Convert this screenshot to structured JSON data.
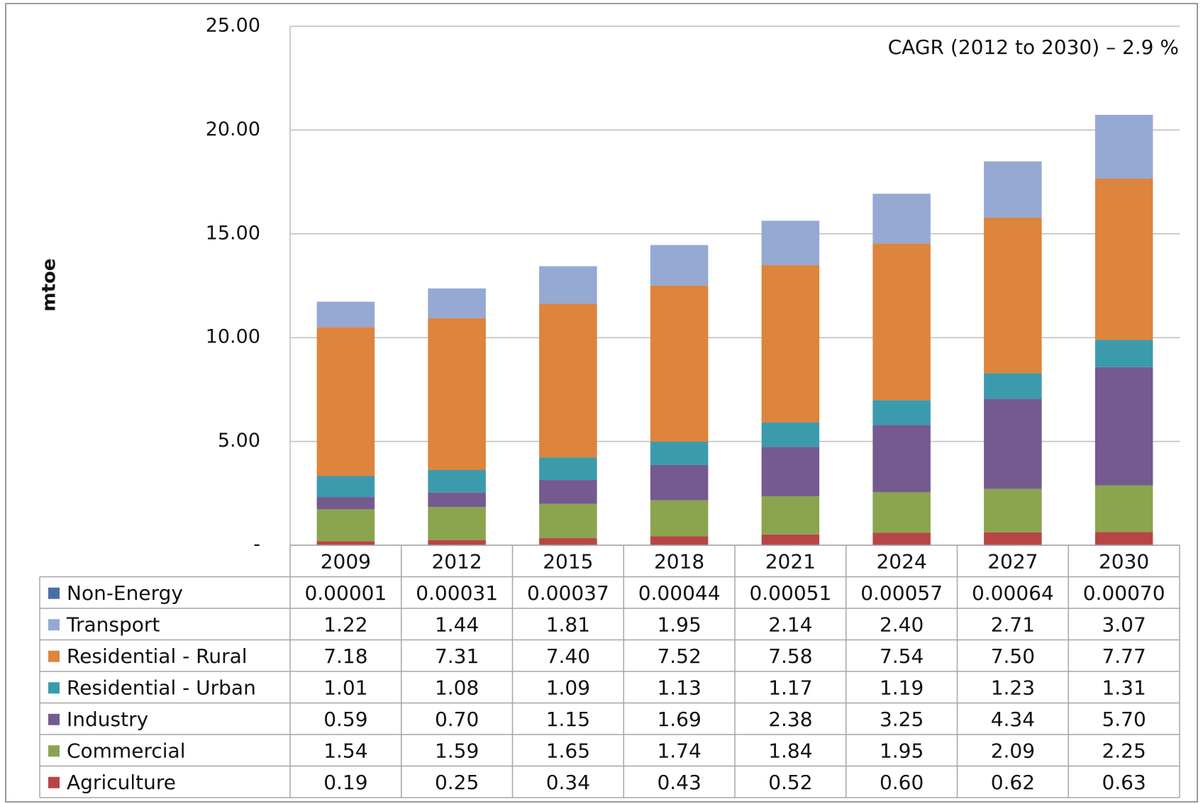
{
  "chart_data": {
    "type": "bar",
    "stacked": true,
    "annotation": "CAGR (2012 to 2030) – 2.9 %",
    "y_label": "mtoe",
    "categories": [
      "2009",
      "2012",
      "2015",
      "2018",
      "2021",
      "2024",
      "2027",
      "2030"
    ],
    "series": [
      {
        "name": "Non-Energy",
        "color": "#4a6fa5",
        "values": [
          1e-05,
          0.00031,
          0.00037,
          0.00044,
          0.00051,
          0.00057,
          0.00064,
          0.0007
        ],
        "value_labels": [
          "0.00001",
          "0.00031",
          "0.00037",
          "0.00044",
          "0.00051",
          "0.00057",
          "0.00064",
          "0.00070"
        ]
      },
      {
        "name": "Transport",
        "color": "#95a9d3",
        "values": [
          1.22,
          1.44,
          1.81,
          1.95,
          2.14,
          2.4,
          2.71,
          3.07
        ],
        "value_labels": [
          "1.22",
          "1.44",
          "1.81",
          "1.95",
          "2.14",
          "2.40",
          "2.71",
          "3.07"
        ]
      },
      {
        "name": "Residential - Rural",
        "color": "#dd843d",
        "values": [
          7.18,
          7.31,
          7.4,
          7.52,
          7.58,
          7.54,
          7.5,
          7.77
        ],
        "value_labels": [
          "7.18",
          "7.31",
          "7.40",
          "7.52",
          "7.58",
          "7.54",
          "7.50",
          "7.77"
        ]
      },
      {
        "name": "Residential - Urban",
        "color": "#3b9bad",
        "values": [
          1.01,
          1.08,
          1.09,
          1.13,
          1.17,
          1.19,
          1.23,
          1.31
        ],
        "value_labels": [
          "1.01",
          "1.08",
          "1.09",
          "1.13",
          "1.17",
          "1.19",
          "1.23",
          "1.31"
        ]
      },
      {
        "name": "Industry",
        "color": "#745a8e",
        "values": [
          0.59,
          0.7,
          1.15,
          1.69,
          2.38,
          3.25,
          4.34,
          5.7
        ],
        "value_labels": [
          "0.59",
          "0.70",
          "1.15",
          "1.69",
          "2.38",
          "3.25",
          "4.34",
          "5.70"
        ]
      },
      {
        "name": "Commercial",
        "color": "#8aa54e",
        "values": [
          1.54,
          1.59,
          1.65,
          1.74,
          1.84,
          1.95,
          2.09,
          2.25
        ],
        "value_labels": [
          "1.54",
          "1.59",
          "1.65",
          "1.74",
          "1.84",
          "1.95",
          "2.09",
          "2.25"
        ]
      },
      {
        "name": "Agriculture",
        "color": "#b84545",
        "values": [
          0.19,
          0.25,
          0.34,
          0.43,
          0.52,
          0.6,
          0.62,
          0.63
        ],
        "value_labels": [
          "0.19",
          "0.25",
          "0.34",
          "0.43",
          "0.52",
          "0.60",
          "0.62",
          "0.63"
        ]
      }
    ],
    "ylim": [
      0,
      25
    ],
    "yticks": [
      {
        "value": 0,
        "label": "-"
      },
      {
        "value": 5,
        "label": "5.00"
      },
      {
        "value": 10,
        "label": "10.00"
      },
      {
        "value": 15,
        "label": "15.00"
      },
      {
        "value": 20,
        "label": "20.00"
      },
      {
        "value": 25,
        "label": "25.00"
      }
    ],
    "grid": true
  }
}
